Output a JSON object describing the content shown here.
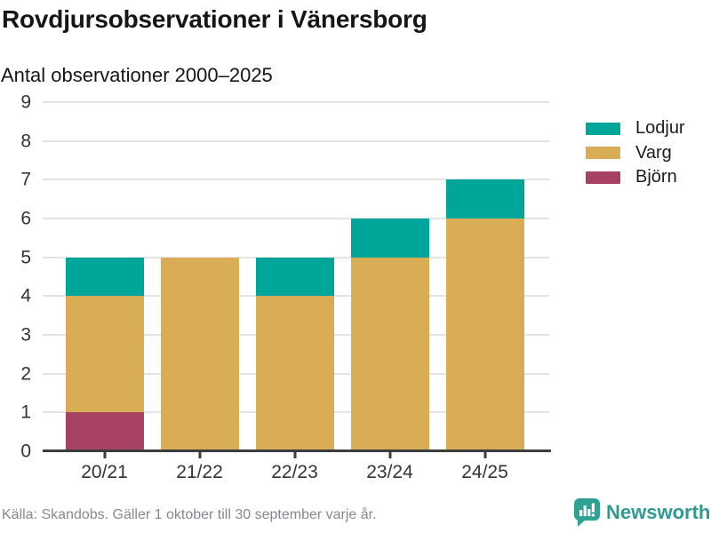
{
  "header": {
    "title": "Rovdjursobservationer i Vänersborg",
    "subtitle": "Antal observationer 2000–2025"
  },
  "chart_data": {
    "type": "bar",
    "stacked": true,
    "title": "Rovdjursobservationer i Vänersborg",
    "subtitle": "Antal observationer 2000–2025",
    "categories": [
      "20/21",
      "21/22",
      "22/23",
      "23/24",
      "24/25"
    ],
    "series": [
      {
        "name": "Björn",
        "key": "bjorn",
        "color": "#a84263",
        "values": [
          1,
          0,
          0,
          0,
          0
        ]
      },
      {
        "name": "Varg",
        "key": "varg",
        "color": "#d9ad55",
        "values": [
          3,
          5,
          4,
          5,
          6
        ]
      },
      {
        "name": "Lodjur",
        "key": "lodjur",
        "color": "#00a699",
        "values": [
          1,
          0,
          1,
          1,
          1
        ]
      }
    ],
    "totals": [
      5,
      5,
      5,
      6,
      7
    ],
    "legend": [
      {
        "name": "Lodjur",
        "key": "lodjur",
        "color": "#00a699"
      },
      {
        "name": "Varg",
        "key": "varg",
        "color": "#d9ad55"
      },
      {
        "name": "Björn",
        "key": "bjorn",
        "color": "#a84263"
      }
    ],
    "legend_position": "right",
    "ylim": [
      0,
      9
    ],
    "yticks": [
      0,
      1,
      2,
      3,
      4,
      5,
      6,
      7,
      8,
      9
    ],
    "grid": true,
    "xlabel": "",
    "ylabel": ""
  },
  "footer": {
    "source": "Källa: Skandobs. Gäller 1 oktober till 30 september varje år.",
    "brand": "Newsworthy"
  },
  "colors": {
    "lodjur": "#00a699",
    "varg": "#d9ad55",
    "bjorn": "#a84263",
    "grid": "#e4e4e4",
    "axis": "#3d3d3d",
    "text_dark": "#161616",
    "tick_text": "#333333",
    "source_text": "#87878f",
    "brand_teal": "#2f9a92"
  }
}
